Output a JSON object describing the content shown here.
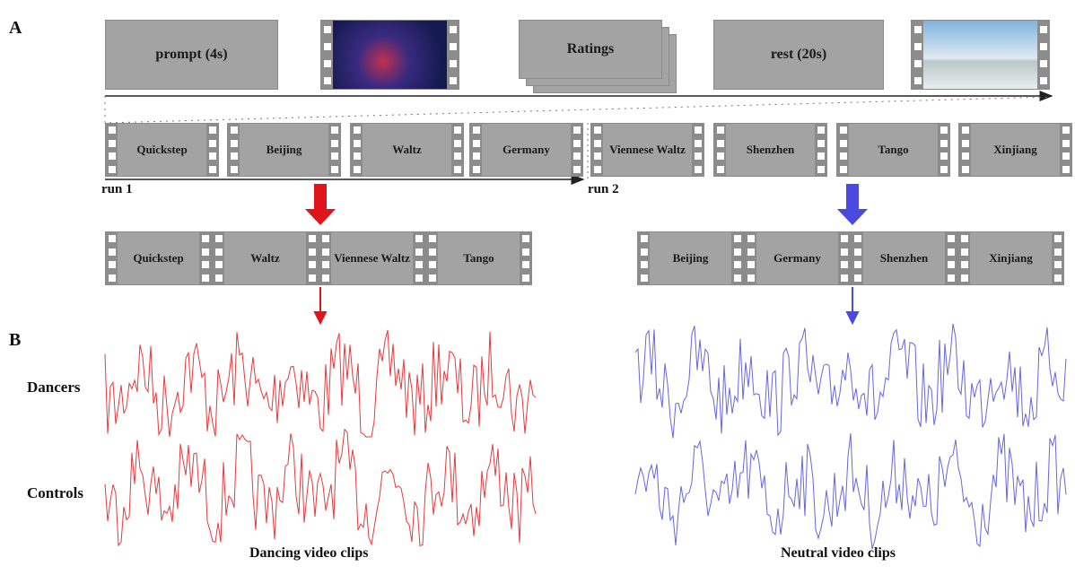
{
  "panel_a": {
    "label": "A",
    "sequence": [
      "prompt (4s)",
      "Ratings",
      "rest (20s)"
    ],
    "runs": [
      {
        "label": "run 1",
        "clips": [
          "Quickstep",
          "Beijing",
          "Waltz",
          "Germany"
        ]
      },
      {
        "label": "run 2",
        "clips": [
          "Viennese Waltz",
          "Shenzhen",
          "Tango",
          "Xinjiang"
        ]
      }
    ],
    "groups": [
      {
        "clips": [
          "Quickstep",
          "Waltz",
          "Viennese Waltz",
          "Tango"
        ]
      },
      {
        "clips": [
          "Beijing",
          "Germany",
          "Shenzhen",
          "Xinjiang"
        ]
      }
    ]
  },
  "panel_b": {
    "label": "B",
    "rows": [
      "Dancers",
      "Controls"
    ],
    "conditions": [
      "Dancing video clips",
      "Neutral video clips"
    ]
  }
}
